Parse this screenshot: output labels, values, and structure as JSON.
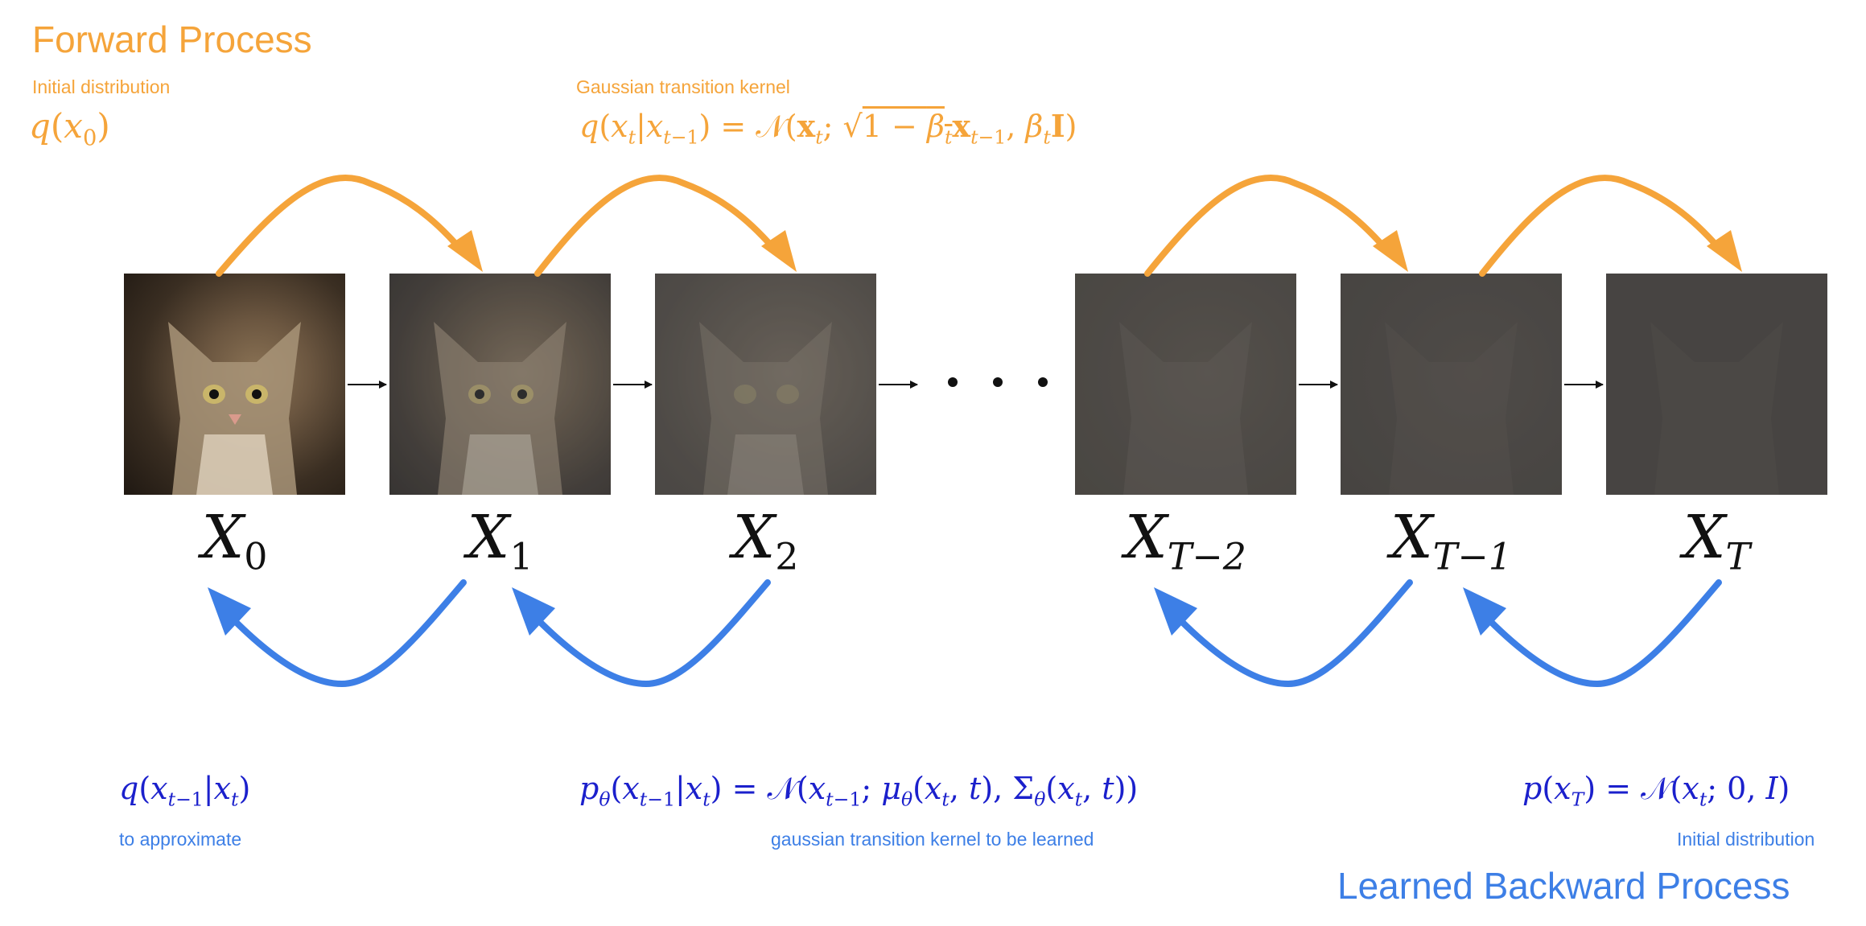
{
  "forward": {
    "title": "Forward Process",
    "initial_label": "Initial distribution",
    "kernel_label": "Gaussian transition kernel",
    "color": "#f5a43a"
  },
  "backward": {
    "title": "Learned Backward Process",
    "approx_label": "to approximate",
    "kernel_label": "gaussian transition kernel to be learned",
    "initial_label": "Initial distribution",
    "color": "#3d7fe6",
    "math_color": "#1b20cc"
  },
  "nodes": [
    {
      "id": "x0",
      "label_main": "X",
      "label_sub": "0",
      "noise_level": 0.0
    },
    {
      "id": "x1",
      "label_main": "X",
      "label_sub": "1",
      "noise_level": 0.35
    },
    {
      "id": "x2",
      "label_main": "X",
      "label_sub": "2",
      "noise_level": 0.55
    },
    {
      "id": "xT-2",
      "label_main": "X",
      "label_sub": "T−2",
      "noise_level": 0.75
    },
    {
      "id": "xT-1",
      "label_main": "X",
      "label_sub": "T−1",
      "noise_level": 0.85
    },
    {
      "id": "xT",
      "label_main": "X",
      "label_sub": "T",
      "noise_level": 0.95
    }
  ],
  "ellipsis": "· · ·"
}
